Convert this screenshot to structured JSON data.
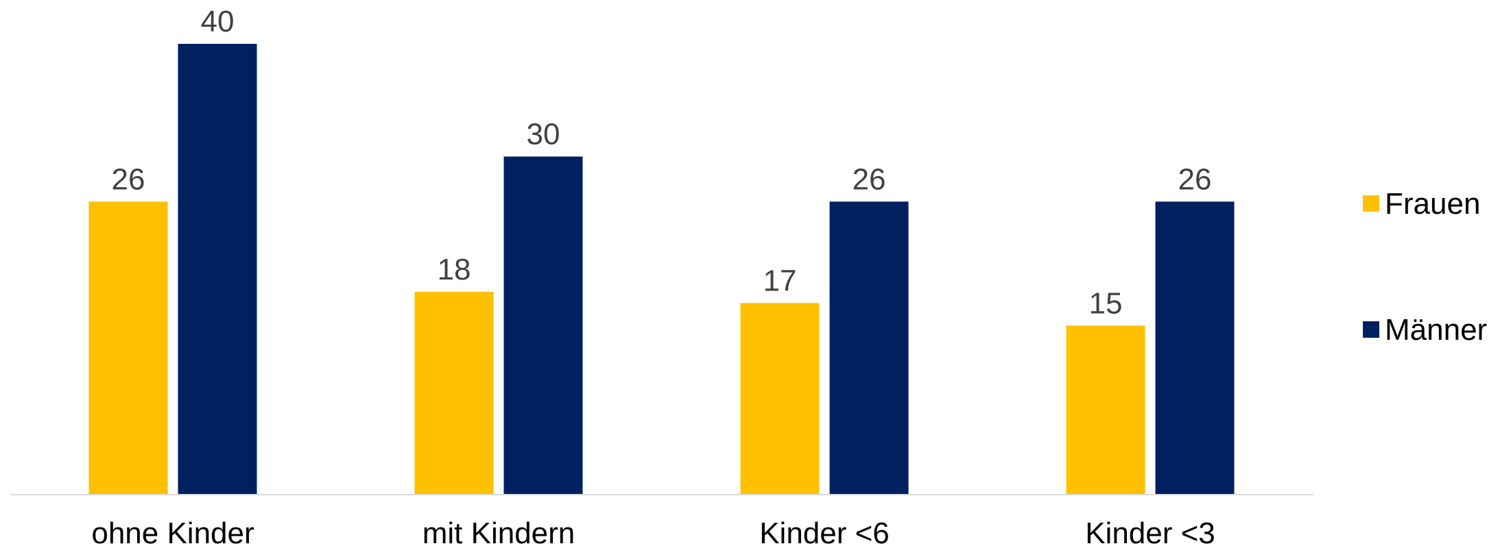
{
  "chart_data": {
    "type": "bar",
    "categories": [
      "ohne Kinder",
      "mit Kindern",
      "Kinder <6",
      "Kinder <3"
    ],
    "series": [
      {
        "name": "Frauen",
        "values": [
          26,
          18,
          17,
          15
        ],
        "color": "#FFC000"
      },
      {
        "name": "Männer",
        "values": [
          40,
          30,
          26,
          26
        ],
        "color": "#002060"
      }
    ],
    "ylim": [
      0,
      44
    ],
    "legend_position": "right",
    "grid": false,
    "axis_line_color": "#D9D9D9"
  }
}
